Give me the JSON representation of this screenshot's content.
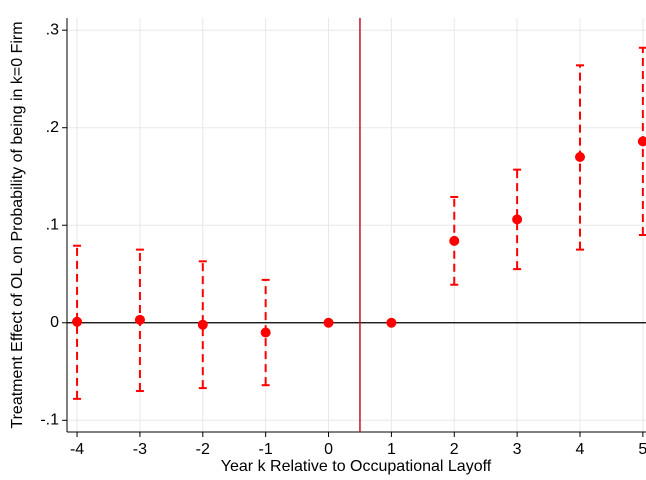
{
  "chart_data": {
    "type": "errorbar",
    "xlabel": "Year k Relative to Occupational Layoff",
    "ylabel": "Treatment Effect of OL on Probability of being in k=0 Firm",
    "x": [
      -4,
      -3,
      -2,
      -1,
      0,
      1,
      2,
      3,
      4,
      5
    ],
    "series": [
      {
        "color": "#ff0000",
        "values": [
          0.001,
          0.003,
          -0.002,
          -0.01,
          0,
          0,
          0.084,
          0.106,
          0.17,
          0.186
        ],
        "lower": [
          -0.078,
          -0.07,
          -0.067,
          -0.064,
          null,
          null,
          0.039,
          0.055,
          0.075,
          0.09
        ],
        "upper": [
          0.079,
          0.075,
          0.063,
          0.044,
          null,
          null,
          0.129,
          0.157,
          0.264,
          0.282
        ]
      }
    ],
    "xlim": [
      -4.16,
      5.05
    ],
    "ylim": [
      -0.112,
      0.3125
    ],
    "xticks": [
      -4,
      -3,
      -2,
      -1,
      0,
      1,
      2,
      3,
      4,
      5
    ],
    "yticks": [
      {
        "value": -0.1,
        "label": "-.1"
      },
      0,
      {
        "value": 0.1,
        "label": ".1"
      },
      {
        "value": 0.2,
        "label": ".2"
      },
      {
        "value": 0.3,
        "label": ".3"
      }
    ],
    "vline": 0.5,
    "vline_color": "#c8102e",
    "hline": 0,
    "grid": true
  }
}
